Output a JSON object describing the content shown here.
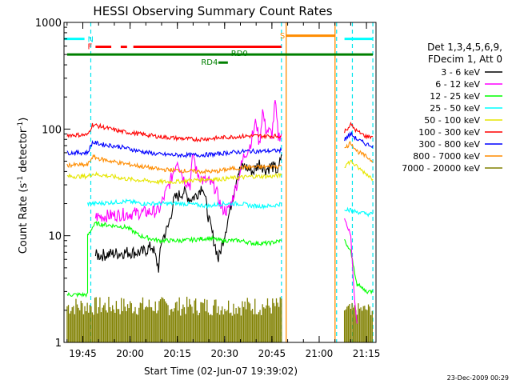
{
  "chart_data": {
    "type": "line",
    "title": "HESSI Observing Summary Count Rates",
    "xlabel": "Start Time (02-Jun-07 19:39:02)",
    "ylabel_main": "Count Rate (s",
    "ylabel_sup1": "-1",
    "ylabel_mid": " detector",
    "ylabel_sup2": "-1",
    "ylabel_end": ")",
    "y_scale": "log",
    "ylim": [
      1,
      1000
    ],
    "xlim_minutes": [
      0,
      99
    ],
    "y_tick_labels": [
      "1",
      "10",
      "100",
      "1000"
    ],
    "x_tick_labels": [
      "19:45",
      "20:00",
      "20:15",
      "20:30",
      "20:45",
      "21:00",
      "21:15"
    ],
    "legend_title_1": "Det 1,3,4,5,6,9,",
    "legend_title_2": "FDecim 1, Att 0",
    "legend_placement": "right",
    "timestamp": "23-Dec-2009 00:29",
    "annotations": {
      "N": "N",
      "F": "F",
      "S": "S",
      "RD0": "RD0",
      "RD4": "RD4"
    },
    "night_color": "#00e5ee",
    "saa_color": "#ff8c00",
    "series": [
      {
        "name": "3 - 6 keV",
        "color": "#000000",
        "points": [
          [
            10,
            6.5
          ],
          [
            20,
            7
          ],
          [
            25,
            7
          ],
          [
            28,
            8
          ],
          [
            30,
            5
          ],
          [
            31,
            9
          ],
          [
            33,
            12
          ],
          [
            35,
            22
          ],
          [
            38,
            26
          ],
          [
            40,
            22
          ],
          [
            42,
            24
          ],
          [
            44,
            30
          ],
          [
            46,
            14
          ],
          [
            48,
            8
          ],
          [
            49,
            6
          ],
          [
            52,
            14
          ],
          [
            55,
            38
          ],
          [
            57,
            45
          ],
          [
            60,
            40
          ],
          [
            62,
            48
          ],
          [
            64,
            42
          ],
          [
            66,
            45
          ],
          [
            68,
            40
          ],
          [
            69,
            58
          ]
        ]
      },
      {
        "name": "6 - 12 keV",
        "color": "#ff00ff",
        "points": [
          [
            10,
            15
          ],
          [
            20,
            16
          ],
          [
            30,
            17
          ],
          [
            34,
            34
          ],
          [
            36,
            52
          ],
          [
            38,
            34
          ],
          [
            40,
            30
          ],
          [
            41,
            60
          ],
          [
            42,
            40
          ],
          [
            44,
            33
          ],
          [
            46,
            32
          ],
          [
            48,
            28
          ],
          [
            50,
            18
          ],
          [
            52,
            17
          ],
          [
            53,
            20
          ],
          [
            55,
            32
          ],
          [
            57,
            55
          ],
          [
            59,
            70
          ],
          [
            61,
            120
          ],
          [
            62,
            70
          ],
          [
            63,
            150
          ],
          [
            64,
            100
          ],
          [
            66,
            90
          ],
          [
            67,
            180
          ],
          [
            68,
            85
          ],
          [
            69,
            90
          ]
        ]
      },
      {
        "name": "12 - 25 keV",
        "color": "#00ff00",
        "points": [
          [
            1,
            2.8
          ],
          [
            7.5,
            2.8
          ],
          [
            7.5,
            10
          ],
          [
            9,
            12
          ],
          [
            10,
            13
          ],
          [
            20,
            12
          ],
          [
            24,
            10
          ],
          [
            30,
            9
          ],
          [
            38,
            9
          ],
          [
            46,
            9.5
          ],
          [
            50,
            9
          ],
          [
            53,
            9
          ],
          [
            56,
            9
          ],
          [
            60,
            8.5
          ],
          [
            65,
            8.5
          ],
          [
            69,
            9
          ]
        ]
      },
      {
        "name": "25 - 50 keV",
        "color": "#00ffff",
        "points": [
          [
            7.5,
            20
          ],
          [
            10,
            20
          ],
          [
            20,
            21
          ],
          [
            25,
            20
          ],
          [
            30,
            20
          ],
          [
            38,
            20
          ],
          [
            46,
            19
          ],
          [
            50,
            20
          ],
          [
            56,
            20
          ],
          [
            60,
            19
          ],
          [
            66,
            19
          ],
          [
            69,
            20
          ]
        ]
      },
      {
        "name": "50 - 100 keV",
        "color": "#e6e600",
        "points": [
          [
            1,
            36
          ],
          [
            7.5,
            36
          ],
          [
            9,
            38
          ],
          [
            15,
            36
          ],
          [
            20,
            34
          ],
          [
            25,
            33
          ],
          [
            30,
            32
          ],
          [
            35,
            32
          ],
          [
            40,
            33
          ],
          [
            46,
            34
          ],
          [
            50,
            34
          ],
          [
            55,
            35
          ],
          [
            60,
            36
          ],
          [
            66,
            36
          ],
          [
            69,
            37
          ]
        ]
      },
      {
        "name": "100 - 300 keV",
        "color": "#ff0000",
        "points": [
          [
            1,
            88
          ],
          [
            7.5,
            88
          ],
          [
            9,
            110
          ],
          [
            12,
            105
          ],
          [
            18,
            95
          ],
          [
            24,
            90
          ],
          [
            30,
            85
          ],
          [
            36,
            82
          ],
          [
            42,
            80
          ],
          [
            48,
            82
          ],
          [
            52,
            84
          ],
          [
            58,
            86
          ],
          [
            63,
            86
          ],
          [
            69,
            86
          ]
        ]
      },
      {
        "name": "300 - 800 keV",
        "color": "#0000ff",
        "points": [
          [
            1,
            60
          ],
          [
            7.5,
            60
          ],
          [
            9,
            75
          ],
          [
            12,
            72
          ],
          [
            18,
            68
          ],
          [
            24,
            62
          ],
          [
            30,
            58
          ],
          [
            36,
            57
          ],
          [
            42,
            57
          ],
          [
            48,
            58
          ],
          [
            52,
            60
          ],
          [
            58,
            62
          ],
          [
            63,
            62
          ],
          [
            69,
            63
          ]
        ]
      },
      {
        "name": "800 - 7000 keV",
        "color": "#ff8c00",
        "points": [
          [
            1,
            46
          ],
          [
            7.5,
            46
          ],
          [
            9,
            55
          ],
          [
            12,
            52
          ],
          [
            18,
            48
          ],
          [
            24,
            45
          ],
          [
            30,
            42
          ],
          [
            36,
            41
          ],
          [
            42,
            40
          ],
          [
            48,
            40
          ],
          [
            52,
            42
          ],
          [
            58,
            44
          ],
          [
            63,
            44
          ],
          [
            69,
            45
          ]
        ]
      },
      {
        "name": "7000 - 20000 keV",
        "color": "#808000",
        "points": [
          [
            1,
            1.5
          ],
          [
            10,
            1.5
          ],
          [
            20,
            1.5
          ],
          [
            30,
            1.5
          ],
          [
            40,
            1.5
          ],
          [
            50,
            1.5
          ],
          [
            60,
            1.5
          ],
          [
            69,
            1.5
          ]
        ]
      }
    ],
    "post_series": [
      {
        "color": "#ff0000",
        "points": [
          [
            89,
            95
          ],
          [
            91,
            110
          ],
          [
            93,
            95
          ],
          [
            96,
            85
          ],
          [
            98,
            85
          ]
        ]
      },
      {
        "color": "#0000ff",
        "points": [
          [
            89,
            80
          ],
          [
            91,
            90
          ],
          [
            93,
            80
          ],
          [
            96,
            72
          ],
          [
            98,
            70
          ]
        ]
      },
      {
        "color": "#ff8c00",
        "points": [
          [
            89,
            65
          ],
          [
            91,
            75
          ],
          [
            93,
            62
          ],
          [
            96,
            55
          ],
          [
            98,
            50
          ]
        ]
      },
      {
        "color": "#e6e600",
        "points": [
          [
            89,
            45
          ],
          [
            91,
            50
          ],
          [
            93,
            44
          ],
          [
            96,
            38
          ],
          [
            98,
            34
          ]
        ]
      },
      {
        "color": "#00ffff",
        "points": [
          [
            89,
            18
          ],
          [
            92,
            17
          ],
          [
            96,
            16
          ],
          [
            98,
            16
          ]
        ]
      },
      {
        "color": "#00ff00",
        "points": [
          [
            89,
            9
          ],
          [
            91,
            7
          ],
          [
            93,
            3.5
          ],
          [
            96,
            3
          ],
          [
            98,
            3
          ]
        ]
      },
      {
        "color": "#ff00ff",
        "points": [
          [
            89,
            15
          ],
          [
            91,
            10
          ],
          [
            92,
            3
          ],
          [
            93,
            1.5
          ]
        ]
      }
    ],
    "bars": {
      "N_line": {
        "color": "#00ffff",
        "y": 700,
        "spans": [
          [
            0,
            6.5
          ],
          [
            89,
            98
          ]
        ]
      },
      "F_line": {
        "color": "#ff0000",
        "y": 590,
        "spans": [
          [
            10,
            15
          ],
          [
            18,
            20
          ],
          [
            22,
            69
          ]
        ]
      },
      "S_line": {
        "color": "#ff8c00",
        "y": 750,
        "spans": [
          [
            70.5,
            86
          ]
        ]
      },
      "RD0_line": {
        "color": "#008000",
        "y": 500,
        "spans": [
          [
            1,
            98
          ]
        ]
      },
      "RD4_line": {
        "color": "#008000",
        "y": 420,
        "spans": [
          [
            49,
            52
          ]
        ]
      }
    },
    "night_lines_min": [
      8.5,
      69,
      86.5,
      91.5,
      98
    ],
    "saa_lines_min": [
      70.5,
      86
    ]
  }
}
